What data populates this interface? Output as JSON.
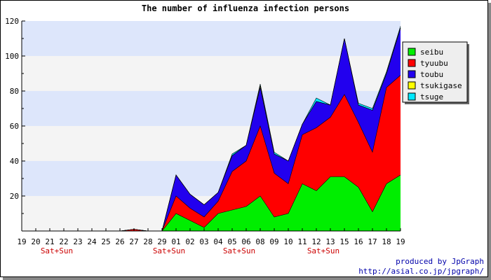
{
  "chart_data": {
    "type": "area",
    "stacked": true,
    "title": "The number of influenza infection persons",
    "xlabel": "",
    "ylabel": "",
    "ylim": [
      0,
      120
    ],
    "yticks": [
      20,
      40,
      60,
      80,
      100,
      120
    ],
    "grid": "horizontal bands",
    "legend_position": "right",
    "categories": [
      "19",
      "20",
      "21",
      "22",
      "23",
      "24",
      "25",
      "26",
      "27",
      "28",
      "29",
      "01",
      "02",
      "03",
      "04",
      "05",
      "06",
      "08",
      "09",
      "10",
      "11",
      "12",
      "13",
      "15",
      "16",
      "17",
      "18",
      "19"
    ],
    "weekend_labels": [
      {
        "label": "Sat+Sun",
        "at": "21-22"
      },
      {
        "label": "Sat+Sun",
        "at": "29-01"
      },
      {
        "label": "Sat+Sun",
        "at": "05-06"
      },
      {
        "label": "Sat+Sun",
        "at": "12-13"
      }
    ],
    "series": [
      {
        "name": "seibu",
        "color": "#00ee00",
        "values": [
          0,
          0,
          0,
          0,
          0,
          0,
          0,
          0,
          0,
          0,
          0,
          10,
          6,
          2,
          10,
          12,
          14,
          20,
          8,
          10,
          27,
          23,
          31,
          31,
          25,
          11,
          27,
          32
        ]
      },
      {
        "name": "tyuubu",
        "color": "#ff0000",
        "values": [
          0,
          0,
          0,
          0,
          0,
          0,
          0,
          0,
          1,
          0,
          0,
          10,
          7,
          6,
          7,
          22,
          26,
          40,
          25,
          17,
          28,
          36,
          34,
          47,
          37,
          34,
          55,
          57
        ]
      },
      {
        "name": "toubu",
        "color": "#2200ee",
        "values": [
          0,
          0,
          0,
          0,
          0,
          0,
          0,
          0,
          0,
          0,
          0,
          12,
          8,
          7,
          5,
          9,
          9,
          22,
          11,
          13,
          6,
          15,
          7,
          32,
          10,
          24,
          8,
          27
        ]
      },
      {
        "name": "tsukigase",
        "color": "#ffff00",
        "values": [
          0,
          0,
          0,
          0,
          0,
          0,
          0,
          0,
          0,
          0,
          0,
          0,
          0,
          0,
          0,
          0,
          0,
          1,
          0,
          0,
          0,
          0,
          0,
          0,
          0,
          0,
          0,
          0
        ]
      },
      {
        "name": "tsuge",
        "color": "#00e8ff",
        "values": [
          0,
          0,
          0,
          0,
          0,
          0,
          0,
          0,
          0,
          0,
          0,
          0,
          0,
          0,
          0,
          1,
          0,
          1,
          1,
          0,
          0,
          2,
          0,
          0,
          1,
          1,
          1,
          1
        ]
      }
    ]
  },
  "credit": {
    "line1": "produced by JpGraph",
    "line2": "http://asial.co.jp/jpgraph/"
  }
}
